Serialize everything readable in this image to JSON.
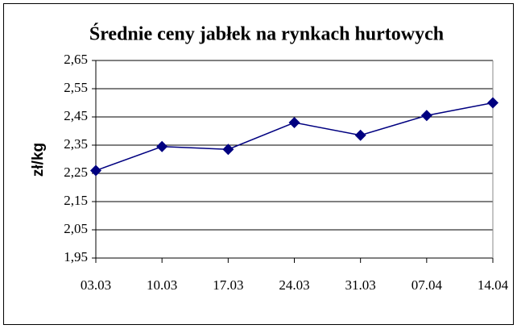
{
  "chart_data": {
    "type": "line",
    "title": "Średnie ceny jabłek na rynkach hurtowych",
    "y_label": "zł/kg",
    "categories": [
      "03.03",
      "10.03",
      "17.03",
      "24.03",
      "31.03",
      "07.04",
      "14.04"
    ],
    "series": [
      {
        "name": "Średnie ceny",
        "color": "#000080",
        "values": [
          2.26,
          2.345,
          2.335,
          2.43,
          2.385,
          2.455,
          2.5
        ]
      }
    ],
    "ylim": [
      1.95,
      2.65
    ],
    "yticks": [
      {
        "value": 1.95,
        "label": "1,95"
      },
      {
        "value": 2.05,
        "label": "2,05"
      },
      {
        "value": 2.15,
        "label": "2,15"
      },
      {
        "value": 2.25,
        "label": "2,25"
      },
      {
        "value": 2.35,
        "label": "2,35"
      },
      {
        "value": 2.45,
        "label": "2,45"
      },
      {
        "value": 2.55,
        "label": "2,55"
      },
      {
        "value": 2.65,
        "label": "2,65"
      }
    ],
    "grid": true
  }
}
